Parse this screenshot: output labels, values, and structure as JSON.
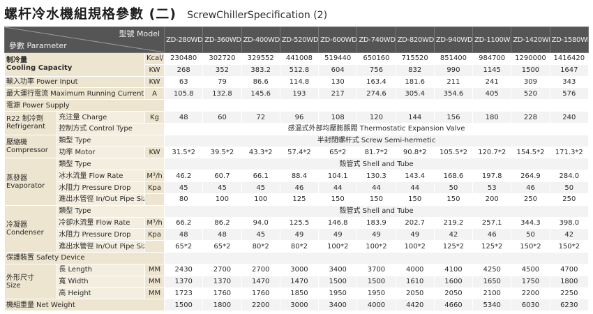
{
  "title": {
    "zh": "螺杆冷水機組規格參數 (二)",
    "en": "ScrewChillerSpecification (2)"
  },
  "header": {
    "parameter": "參數 Parameter",
    "model": "型號 Model",
    "models": [
      "ZD-280WD",
      "ZD-360WD",
      "ZD-400WD",
      "ZD-520WD",
      "ZD-600WD",
      "ZD-740WD",
      "ZD-820WD",
      "ZD-940WD",
      "ZD-1100WD",
      "ZD-1420WD",
      "ZD-1580WD"
    ]
  },
  "rows": {
    "cc_kcal": {
      "unit": "Kcal/h",
      "values": [
        "230480",
        "302720",
        "329552",
        "441008",
        "519440",
        "650160",
        "715520",
        "851400",
        "984700",
        "1290000",
        "1416420"
      ]
    },
    "cc_kw": {
      "unit": "KW",
      "values": [
        "268",
        "352",
        "383.2",
        "512.8",
        "604",
        "756",
        "832",
        "990",
        "1145",
        "1500",
        "1647"
      ]
    },
    "power": {
      "label": "輸入功率 Power Input",
      "unit": "KW",
      "values": [
        "63",
        "79",
        "86.6",
        "114.8",
        "130",
        "163.4",
        "181.6",
        "211",
        "241",
        "309",
        "343"
      ]
    },
    "current": {
      "label": "最大運行電流 Maximum Running Current",
      "unit": "A",
      "values": [
        "105.8",
        "132.8",
        "145.6",
        "193",
        "217",
        "274.6",
        "305.4",
        "354.6",
        "405",
        "520",
        "576"
      ]
    },
    "supply": {
      "label": "電源 Power Supply"
    },
    "charge": {
      "label": "充注量 Charge",
      "unit": "Kg",
      "values": [
        "48",
        "60",
        "72",
        "96",
        "108",
        "120",
        "144",
        "156",
        "180",
        "228",
        "240"
      ]
    },
    "control": {
      "label": "控制方式 Control Type",
      "value": "感温式外部均壓膨脹閥 Thermostatic Expansion Valve"
    },
    "comp_type": {
      "label": "類型 Type",
      "value": "半封閉螺杆式 Screw Semi-hermetic"
    },
    "motor": {
      "label": "功率 Motor",
      "unit": "KW",
      "values": [
        "31.5*2",
        "39.5*2",
        "43.3*2",
        "57.4*2",
        "65*2",
        "81.7*2",
        "90.8*2",
        "105.5*2",
        "120.7*2",
        "154.5*2",
        "171.3*2"
      ]
    },
    "evap_type": {
      "label": "類型 Type",
      "value": "殼管式 Shell and Tube"
    },
    "evap_flow": {
      "label": "冰水流量 Flow Rate",
      "unit": "M³/h",
      "values": [
        "46.2",
        "60.7",
        "66.1",
        "88.4",
        "104.1",
        "130.3",
        "143.4",
        "168.6",
        "197.8",
        "264.9",
        "284.0"
      ]
    },
    "evap_drop": {
      "label": "水阻力 Pressure Drop",
      "unit": "Kpa",
      "values": [
        "45",
        "45",
        "45",
        "46",
        "44",
        "44",
        "44",
        "50",
        "53",
        "46",
        "50"
      ]
    },
    "evap_pipe": {
      "label": "進出水管徑 In/Out Pipe Size",
      "unit": "",
      "values": [
        "80",
        "100",
        "100",
        "125",
        "150",
        "150",
        "150",
        "150",
        "200",
        "250",
        "250"
      ]
    },
    "cond_type": {
      "label": "類型 Type",
      "value": "殼管式 Shell and Tube"
    },
    "cond_flow": {
      "label": "冷卻水流量 Flow Rate",
      "unit": "M³/h",
      "values": [
        "66.2",
        "86.2",
        "94.0",
        "125.5",
        "146.8",
        "183.9",
        "202.7",
        "219.2",
        "257.1",
        "344.3",
        "398.0"
      ]
    },
    "cond_drop": {
      "label": "水阻力 Pressure Drop",
      "unit": "Kpa",
      "values": [
        "48",
        "48",
        "45",
        "49",
        "49",
        "49",
        "49",
        "42",
        "46",
        "50",
        "42"
      ]
    },
    "cond_pipe": {
      "label": "進出水管徑 In/Out Pipe Size",
      "unit": "",
      "values": [
        "65*2",
        "65*2",
        "80*2",
        "80*2",
        "100*2",
        "100*2",
        "100*2",
        "125*2",
        "125*2",
        "150*2",
        "150*2"
      ]
    },
    "safety": {
      "label": "保護裝置 Safety Device"
    },
    "length": {
      "label": "長 Length",
      "unit": "MM",
      "values": [
        "2430",
        "2700",
        "2700",
        "3000",
        "3400",
        "3700",
        "4000",
        "4100",
        "4250",
        "4500",
        "4700"
      ]
    },
    "width": {
      "label": "寬 Width",
      "unit": "MM",
      "values": [
        "1370",
        "1370",
        "1470",
        "1470",
        "1500",
        "1500",
        "1610",
        "1600",
        "1650",
        "1750",
        "1800"
      ]
    },
    "height": {
      "label": "高 Height",
      "unit": "MM",
      "values": [
        "1723",
        "1760",
        "1760",
        "1850",
        "1950",
        "1950",
        "2050",
        "2050",
        "2100",
        "2200",
        "2250"
      ]
    },
    "weight": {
      "label": "機組重量 Net Weight",
      "unit": "",
      "values": [
        "1500",
        "1800",
        "2200",
        "3000",
        "3400",
        "4000",
        "4420",
        "4660",
        "5340",
        "6030",
        "6230"
      ]
    }
  },
  "groups": {
    "cooling_capacity": [
      "制冷量",
      "Cooling Capacity"
    ],
    "refrigerant": [
      "R22 制冷劑",
      "Refrigerant"
    ],
    "compressor": [
      "壓縮機",
      "Compressor"
    ],
    "evaporator": [
      "蒸發器",
      "Evaporator"
    ],
    "condenser": [
      "冷凝器",
      "Condenser"
    ],
    "size": [
      "外形尺寸",
      "Size"
    ]
  }
}
